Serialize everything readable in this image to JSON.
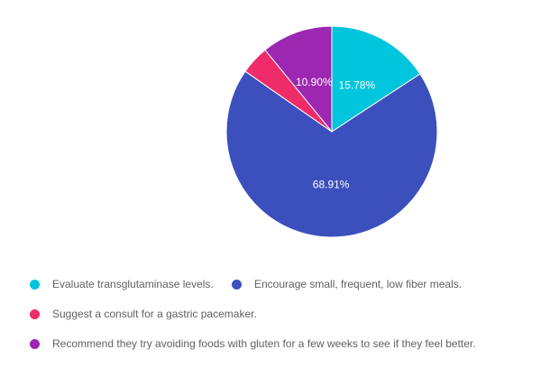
{
  "chart_data": {
    "type": "pie",
    "title": "",
    "legend_position": "bottom",
    "slices": [
      {
        "label": "Evaluate transglutaminase levels.",
        "value": 15.78,
        "value_label": "15.78%",
        "color": "#00c5dc"
      },
      {
        "label": "Encourage small, frequent, low fiber meals.",
        "value": 68.91,
        "value_label": "68.91%",
        "color": "#3b4fbd"
      },
      {
        "label": "Suggest a consult for a gastric pacemaker.",
        "value": 4.41,
        "value_label": "",
        "color": "#ef2c6a"
      },
      {
        "label": "Recommend they try avoiding foods with gluten for a few weeks to see if they feel better.",
        "value": 10.9,
        "value_label": "10.90%",
        "color": "#9c27b0"
      }
    ]
  }
}
